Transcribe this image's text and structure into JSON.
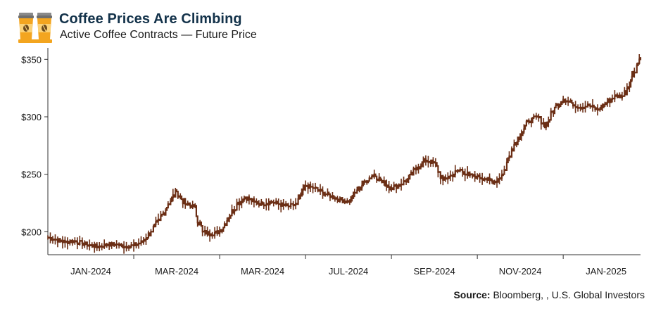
{
  "header": {
    "title": "Coffee Prices Are Climbing",
    "subtitle": "Active Coffee Contracts — Future Price"
  },
  "source": {
    "label": "Source:",
    "text": " Bloomberg, , U.S. Global Investors"
  },
  "colors": {
    "series": "#6b2e15",
    "title": "#13324a",
    "logo_cup": "#f3a51f",
    "logo_accent": "#8a8a8a"
  },
  "icons": {
    "logo": "coffee-cups-icon"
  },
  "chart_data": {
    "type": "line",
    "title": "Coffee Prices Are Climbing",
    "subtitle": "Active Coffee Contracts — Future Price",
    "xlabel": "",
    "ylabel": "",
    "ylim": [
      180,
      360
    ],
    "yticks": [
      200,
      250,
      300,
      350
    ],
    "ytick_labels": [
      "$200",
      "$250",
      "$300",
      "$350"
    ],
    "xticks": [
      {
        "label": "JAN-2024",
        "pos": 0.5
      },
      {
        "label": "MAR-2024",
        "pos": 1.5
      },
      {
        "label": "MAR-2024",
        "pos": 2.5
      },
      {
        "label": "JUL-2024",
        "pos": 3.5
      },
      {
        "label": "SEP-2024",
        "pos": 4.5
      },
      {
        "label": "NOV-2024",
        "pos": 5.5
      },
      {
        "label": "JAN-2025",
        "pos": 6.5
      }
    ],
    "xlim": [
      0,
      6.9
    ],
    "grid": false,
    "legend": "none",
    "series": [
      {
        "x": [
          0.0,
          0.1,
          0.2,
          0.3,
          0.4,
          0.5,
          0.6,
          0.7,
          0.8,
          0.9,
          1.0,
          1.1,
          1.2,
          1.3,
          1.4,
          1.5,
          1.6,
          1.7,
          1.8,
          1.9,
          2.0,
          2.1,
          2.2,
          2.3,
          2.4,
          2.5,
          2.6,
          2.7,
          2.8,
          2.9,
          3.0,
          3.1,
          3.2,
          3.3,
          3.4,
          3.5,
          3.6,
          3.7,
          3.8,
          3.9,
          4.0,
          4.1,
          4.2,
          4.3,
          4.4,
          4.5,
          4.6,
          4.7,
          4.8,
          4.9,
          5.0,
          5.1,
          5.2,
          5.3,
          5.4,
          5.5,
          5.6,
          5.7,
          5.8,
          5.9,
          6.0,
          6.1,
          6.2,
          6.3,
          6.4,
          6.5,
          6.6,
          6.7,
          6.8,
          6.9
        ],
        "values": [
          195,
          193,
          191,
          192,
          190,
          188,
          187,
          189,
          189,
          187,
          188,
          191,
          200,
          210,
          224,
          235,
          224,
          222,
          200,
          198,
          200,
          212,
          224,
          230,
          226,
          224,
          226,
          224,
          222,
          224,
          240,
          238,
          234,
          231,
          228,
          226,
          236,
          244,
          250,
          243,
          238,
          241,
          246,
          256,
          262,
          260,
          245,
          249,
          254,
          249,
          248,
          246,
          243,
          250,
          272,
          285,
          296,
          300,
          292,
          308,
          315,
          312,
          308,
          310,
          306,
          312,
          318,
          318,
          335,
          352
        ]
      }
    ]
  }
}
